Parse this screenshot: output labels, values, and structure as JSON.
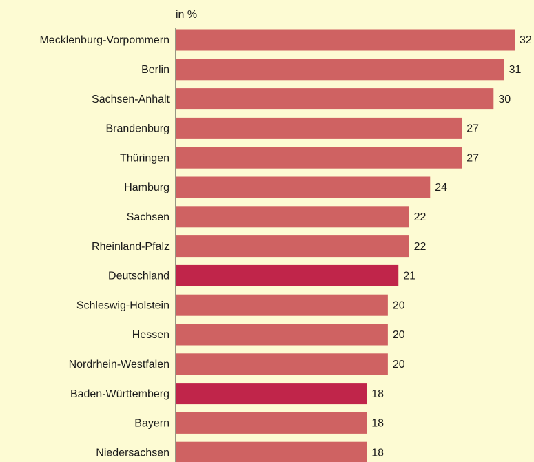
{
  "chart_data": {
    "type": "hbar",
    "unit_label": "in %",
    "categories": [
      "Mecklenburg-Vorpommern",
      "Berlin",
      "Sachsen-Anhalt",
      "Brandenburg",
      "Thüringen",
      "Hamburg",
      "Sachsen",
      "Rheinland-Pfalz",
      "Deutschland",
      "Schleswig-Holstein",
      "Hessen",
      "Nordrhein-Westfalen",
      "Baden-Württemberg",
      "Bayern",
      "Niedersachsen"
    ],
    "values": [
      32,
      31,
      30,
      27,
      27,
      24,
      22,
      22,
      21,
      20,
      20,
      20,
      18,
      18,
      18
    ],
    "colors": [
      "#cf6262",
      "#cf6262",
      "#cf6262",
      "#cf6262",
      "#cf6262",
      "#cf6262",
      "#cf6262",
      "#cf6262",
      "#c0254a",
      "#cf6262",
      "#cf6262",
      "#cf6262",
      "#c0254a",
      "#cf6262",
      "#cf6262"
    ],
    "xlim": [
      0,
      32
    ]
  }
}
